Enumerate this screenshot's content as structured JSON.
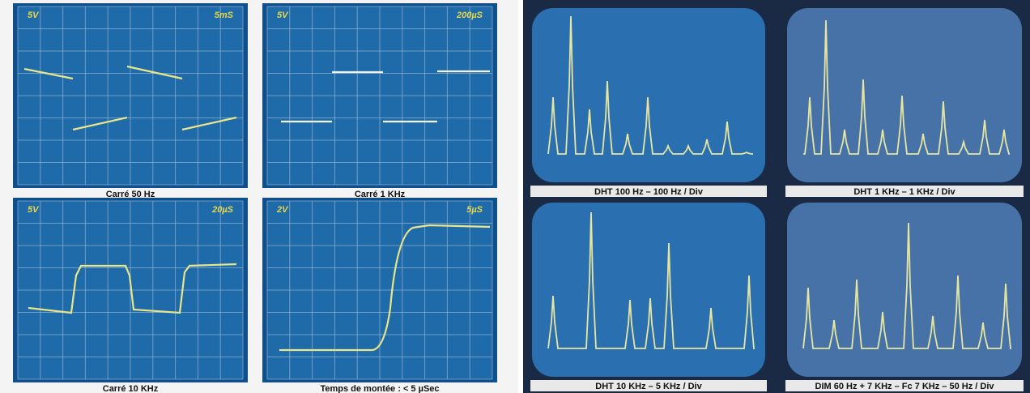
{
  "scopes": [
    {
      "volts": "5V",
      "time": "5mS",
      "caption": "Carré 50 Hz"
    },
    {
      "volts": "5V",
      "time": "200µS",
      "caption": "Carré 1 KHz"
    },
    {
      "volts": "5V",
      "time": "20µS",
      "caption": "Carré 10 KHz"
    },
    {
      "volts": "2V",
      "time": "5µS",
      "caption": "Temps de montée : < 5 µSec"
    }
  ],
  "spectra": [
    {
      "caption": "DHT 100 Hz – 100 Hz / Div"
    },
    {
      "caption": "DHT 1 KHz – 1 KHz / Div"
    },
    {
      "caption": "DHT 10 KHz – 5 KHz / Div"
    },
    {
      "caption": "DIM 60 Hz + 7 KHz – Fc 7 KHz – 50 Hz / Div"
    }
  ]
}
